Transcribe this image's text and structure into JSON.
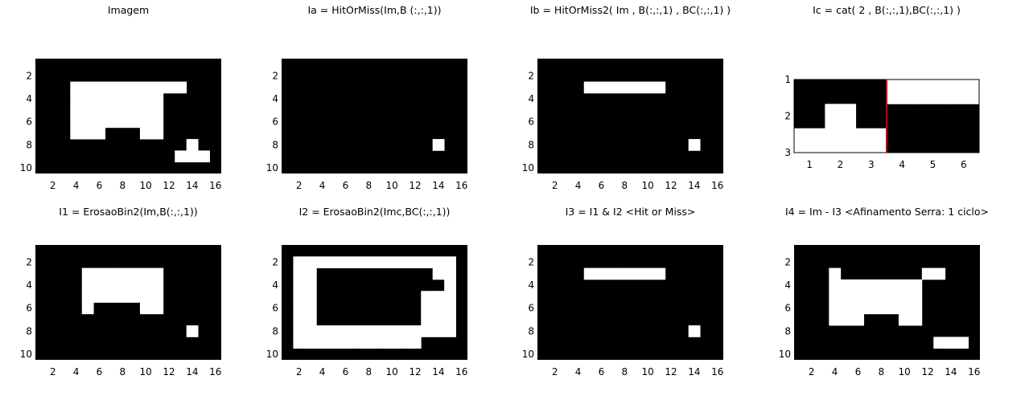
{
  "colors": {
    "on": "#ffffff",
    "off": "#000000",
    "frame": "#000000",
    "separator": "#cc0000"
  },
  "chart_data": [
    {
      "type": "heatmap",
      "id": "imagem",
      "title": "Imagem",
      "xticks": [
        2,
        4,
        6,
        8,
        10,
        12,
        14,
        16
      ],
      "yticks": [
        2,
        4,
        6,
        8,
        10
      ],
      "xlim": [
        0.5,
        16.5
      ],
      "ylim": [
        0.5,
        10.5
      ],
      "matrix": [
        "0000000000000000",
        "0000000000000000",
        "0001111111111000",
        "0001111111100000",
        "0001111111100000",
        "0001111111100000",
        "0001110001100000",
        "0000000000000100",
        "0000000000001110",
        "0000000000000000"
      ]
    },
    {
      "type": "heatmap",
      "id": "ia",
      "title": "Ia = HitOrMiss(Im,B (:,:,1))",
      "xticks": [
        2,
        4,
        6,
        8,
        10,
        12,
        14,
        16
      ],
      "yticks": [
        2,
        4,
        6,
        8,
        10
      ],
      "xlim": [
        0.5,
        16.5
      ],
      "ylim": [
        0.5,
        10.5
      ],
      "matrix": [
        "0000000000000000",
        "0000000000000000",
        "0000000000000000",
        "0000000000000000",
        "0000000000000000",
        "0000000000000000",
        "0000000000000000",
        "0000000000000100",
        "0000000000000000",
        "0000000000000000"
      ]
    },
    {
      "type": "heatmap",
      "id": "ib",
      "title": "Ib = HitOrMiss2( Im , B(:,:,1) , BC(:,:,1) )",
      "xticks": [
        2,
        4,
        6,
        8,
        10,
        12,
        14,
        16
      ],
      "yticks": [
        2,
        4,
        6,
        8,
        10
      ],
      "xlim": [
        0.5,
        16.5
      ],
      "ylim": [
        0.5,
        10.5
      ],
      "matrix": [
        "0000000000000000",
        "0000000000000000",
        "0000111111100000",
        "0000000000000000",
        "0000000000000000",
        "0000000000000000",
        "0000000000000000",
        "0000000000000100",
        "0000000000000000",
        "0000000000000000"
      ]
    },
    {
      "type": "heatmap",
      "id": "ic",
      "title": "Ic = cat( 2 , B(:,:,1),BC(:,:,1)  )",
      "xticks": [
        1,
        2,
        3,
        4,
        5,
        6
      ],
      "yticks": [
        1,
        2,
        3
      ],
      "xlim": [
        0.5,
        6.5
      ],
      "ylim": [
        1,
        3
      ],
      "framed": true,
      "separator_x": 3.5,
      "matrix": [
        "000111",
        "010000",
        "111000"
      ]
    },
    {
      "type": "heatmap",
      "id": "i1",
      "title": "I1 = ErosaoBin2(Im,B(:,:,1))",
      "xticks": [
        2,
        4,
        6,
        8,
        10,
        12,
        14,
        16
      ],
      "yticks": [
        2,
        4,
        6,
        8,
        10
      ],
      "xlim": [
        0.5,
        16.5
      ],
      "ylim": [
        0.5,
        10.5
      ],
      "matrix": [
        "0000000000000000",
        "0000000000000000",
        "0000111111100000",
        "0000111111100000",
        "0000111111100000",
        "0000100001100000",
        "0000000000000000",
        "0000000000000100",
        "0000000000000000",
        "0000000000000000"
      ]
    },
    {
      "type": "heatmap",
      "id": "i2",
      "title": "I2 = ErosaoBin2(Imc,BC(:,:,1))",
      "xticks": [
        2,
        4,
        6,
        8,
        10,
        12,
        14,
        16
      ],
      "yticks": [
        2,
        4,
        6,
        8,
        10
      ],
      "xlim": [
        0.5,
        16.5
      ],
      "ylim": [
        0.5,
        10.5
      ],
      "matrix": [
        "0000000000000000",
        "0111111111111110",
        "0110000000000110",
        "0110000000000010",
        "0110000000001110",
        "0110000000001110",
        "0110000000001110",
        "0111111111111110",
        "0111111111110000",
        "0000000000000000"
      ]
    },
    {
      "type": "heatmap",
      "id": "i3",
      "title": "I3 =  I1 & I2 <Hit or Miss>",
      "xticks": [
        2,
        4,
        6,
        8,
        10,
        12,
        14,
        16
      ],
      "yticks": [
        2,
        4,
        6,
        8,
        10
      ],
      "xlim": [
        0.5,
        16.5
      ],
      "ylim": [
        0.5,
        10.5
      ],
      "matrix": [
        "0000000000000000",
        "0000000000000000",
        "0000111111100000",
        "0000000000000000",
        "0000000000000000",
        "0000000000000000",
        "0000000000000000",
        "0000000000000100",
        "0000000000000000",
        "0000000000000000"
      ]
    },
    {
      "type": "heatmap",
      "id": "i4",
      "title": "I4 = Im - I3 <Afinamento Serra: 1 ciclo>",
      "xticks": [
        2,
        4,
        6,
        8,
        10,
        12,
        14,
        16
      ],
      "yticks": [
        2,
        4,
        6,
        8,
        10
      ],
      "xlim": [
        0.5,
        16.5
      ],
      "ylim": [
        0.5,
        10.5
      ],
      "matrix": [
        "0000000000000000",
        "0000000000000000",
        "0001000000011000",
        "0001111111100000",
        "0001111111100000",
        "0001111111100000",
        "0001110001100000",
        "0000000000000000",
        "0000000000001110",
        "0000000000000000"
      ]
    }
  ]
}
